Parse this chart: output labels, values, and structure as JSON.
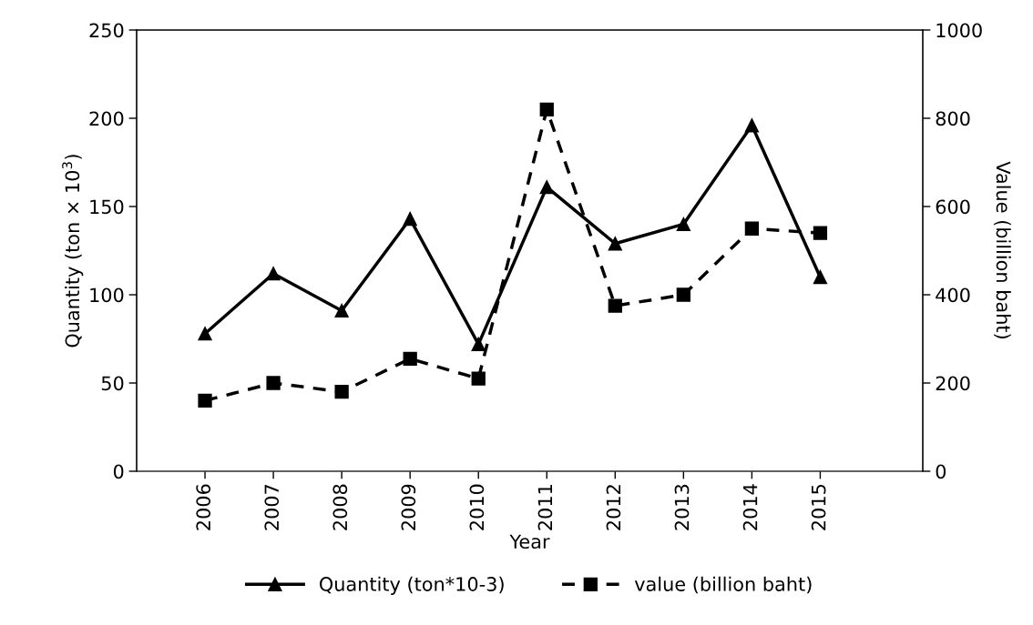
{
  "chart_data": {
    "type": "line",
    "xlabel": "Year",
    "ylabel": "Quantity (ton × 10$^{3}$)",
    "y2label": "Value (billion baht)",
    "categories": [
      "2006",
      "2007",
      "2008",
      "2009",
      "2010",
      "2011",
      "2012",
      "2013",
      "2014",
      "2015"
    ],
    "series": [
      {
        "name": "Quantity (ton*10-3)",
        "color": "#000000",
        "marker": "triangle",
        "line_style": "solid",
        "values": [
          78,
          112,
          91,
          143,
          72,
          161,
          129,
          140,
          196,
          110
        ]
      },
      {
        "name": "value (billion baht)",
        "color": "#000000",
        "marker": "square",
        "line_style": "dashed",
        "axis": "y2",
        "values": [
          160,
          200,
          180,
          255,
          210,
          820,
          375,
          400,
          550,
          540
        ]
      }
    ],
    "ylim": [
      0,
      250
    ],
    "yticks": [
      0,
      50,
      100,
      150,
      200,
      250
    ],
    "y2lim": [
      0,
      1000
    ],
    "y2ticks": [
      0,
      200,
      400,
      600,
      800,
      1000
    ],
    "grid": false,
    "legend": "bottom"
  }
}
